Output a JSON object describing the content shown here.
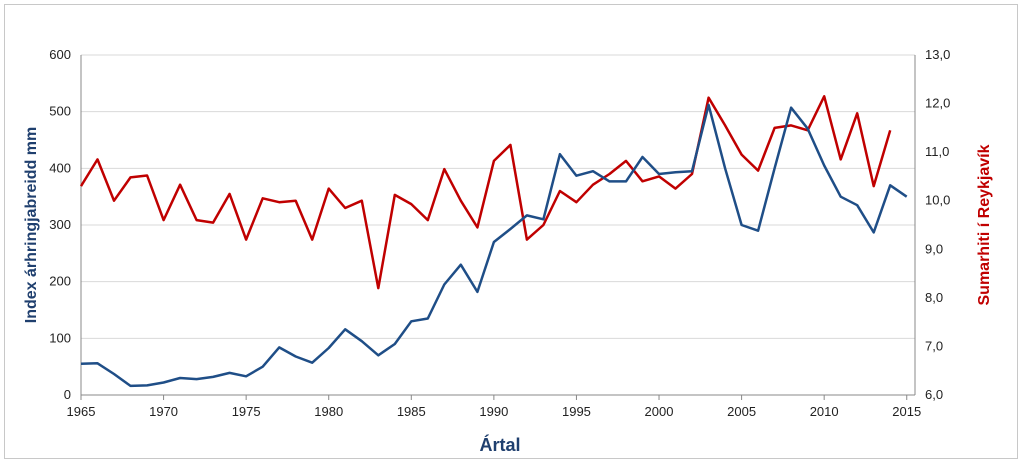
{
  "chart_data": {
    "type": "line",
    "xlabel": "Ártal",
    "ylabel_left": "Index árhringjabreidd  mm",
    "ylabel_right": "Sumarhiti í Reykjavík",
    "xlim": [
      1965,
      2015.5
    ],
    "x_ticks": [
      "1965",
      "1970",
      "1975",
      "1980",
      "1985",
      "1990",
      "1995",
      "2000",
      "2005",
      "2010",
      "2015"
    ],
    "y_left_lim": [
      0,
      600
    ],
    "y_left_ticks": [
      "0",
      "100",
      "200",
      "300",
      "400",
      "500",
      "600"
    ],
    "y_right_lim": [
      6.0,
      13.0
    ],
    "y_right_ticks": [
      "6,0",
      "7,0",
      "8,0",
      "9,0",
      "10,0",
      "11,0",
      "12,0",
      "13,0"
    ],
    "grid": "horizontal",
    "colors": {
      "left_series": "#1f4e87",
      "right_series": "#c00000",
      "grid": "#d9d9d9"
    },
    "series": [
      {
        "axis": "left",
        "x": [
          1965,
          1966,
          1967,
          1968,
          1969,
          1970,
          1971,
          1972,
          1973,
          1974,
          1975,
          1976,
          1977,
          1978,
          1979,
          1980,
          1981,
          1982,
          1983,
          1984,
          1985,
          1986,
          1987,
          1988,
          1989,
          1990,
          1991,
          1992,
          1993,
          1994,
          1995,
          1996,
          1997,
          1998,
          1999,
          2000,
          2001,
          2002,
          2003,
          2004,
          2005,
          2006,
          2007,
          2008,
          2009,
          2010,
          2011,
          2012,
          2013,
          2014,
          2015
        ],
        "values": [
          55,
          56,
          37,
          16,
          17,
          22,
          30,
          28,
          32,
          39,
          33,
          50,
          84,
          68,
          57,
          83,
          116,
          95,
          70,
          90,
          130,
          135,
          195,
          230,
          182,
          270,
          293,
          317,
          310,
          425,
          387,
          395,
          377,
          377,
          420,
          390,
          393,
          395,
          512,
          400,
          300,
          290,
          400,
          507,
          470,
          405,
          350,
          335,
          287,
          370,
          350
        ]
      },
      {
        "axis": "right",
        "x": [
          1965,
          1966,
          1967,
          1968,
          1969,
          1970,
          1971,
          1972,
          1973,
          1974,
          1975,
          1976,
          1977,
          1978,
          1979,
          1980,
          1981,
          1982,
          1983,
          1984,
          1985,
          1986,
          1987,
          1988,
          1989,
          1990,
          1991,
          1992,
          1993,
          1994,
          1995,
          1996,
          1997,
          1998,
          1999,
          2000,
          2001,
          2002,
          2003,
          2004,
          2005,
          2006,
          2007,
          2008,
          2009,
          2010,
          2011,
          2012,
          2013,
          2014
        ],
        "values": [
          10.3,
          10.85,
          10.0,
          10.48,
          10.52,
          9.6,
          10.33,
          9.6,
          9.55,
          10.14,
          9.2,
          10.05,
          9.97,
          10.0,
          9.2,
          10.25,
          9.85,
          10.0,
          8.2,
          10.12,
          9.93,
          9.6,
          10.65,
          10.0,
          9.45,
          10.82,
          11.15,
          9.2,
          9.5,
          10.2,
          9.97,
          10.33,
          10.55,
          10.82,
          10.4,
          10.5,
          10.25,
          10.55,
          12.12,
          11.55,
          10.95,
          10.62,
          11.5,
          11.55,
          11.45,
          12.15,
          10.85,
          11.8,
          10.3,
          11.45
        ]
      }
    ]
  }
}
